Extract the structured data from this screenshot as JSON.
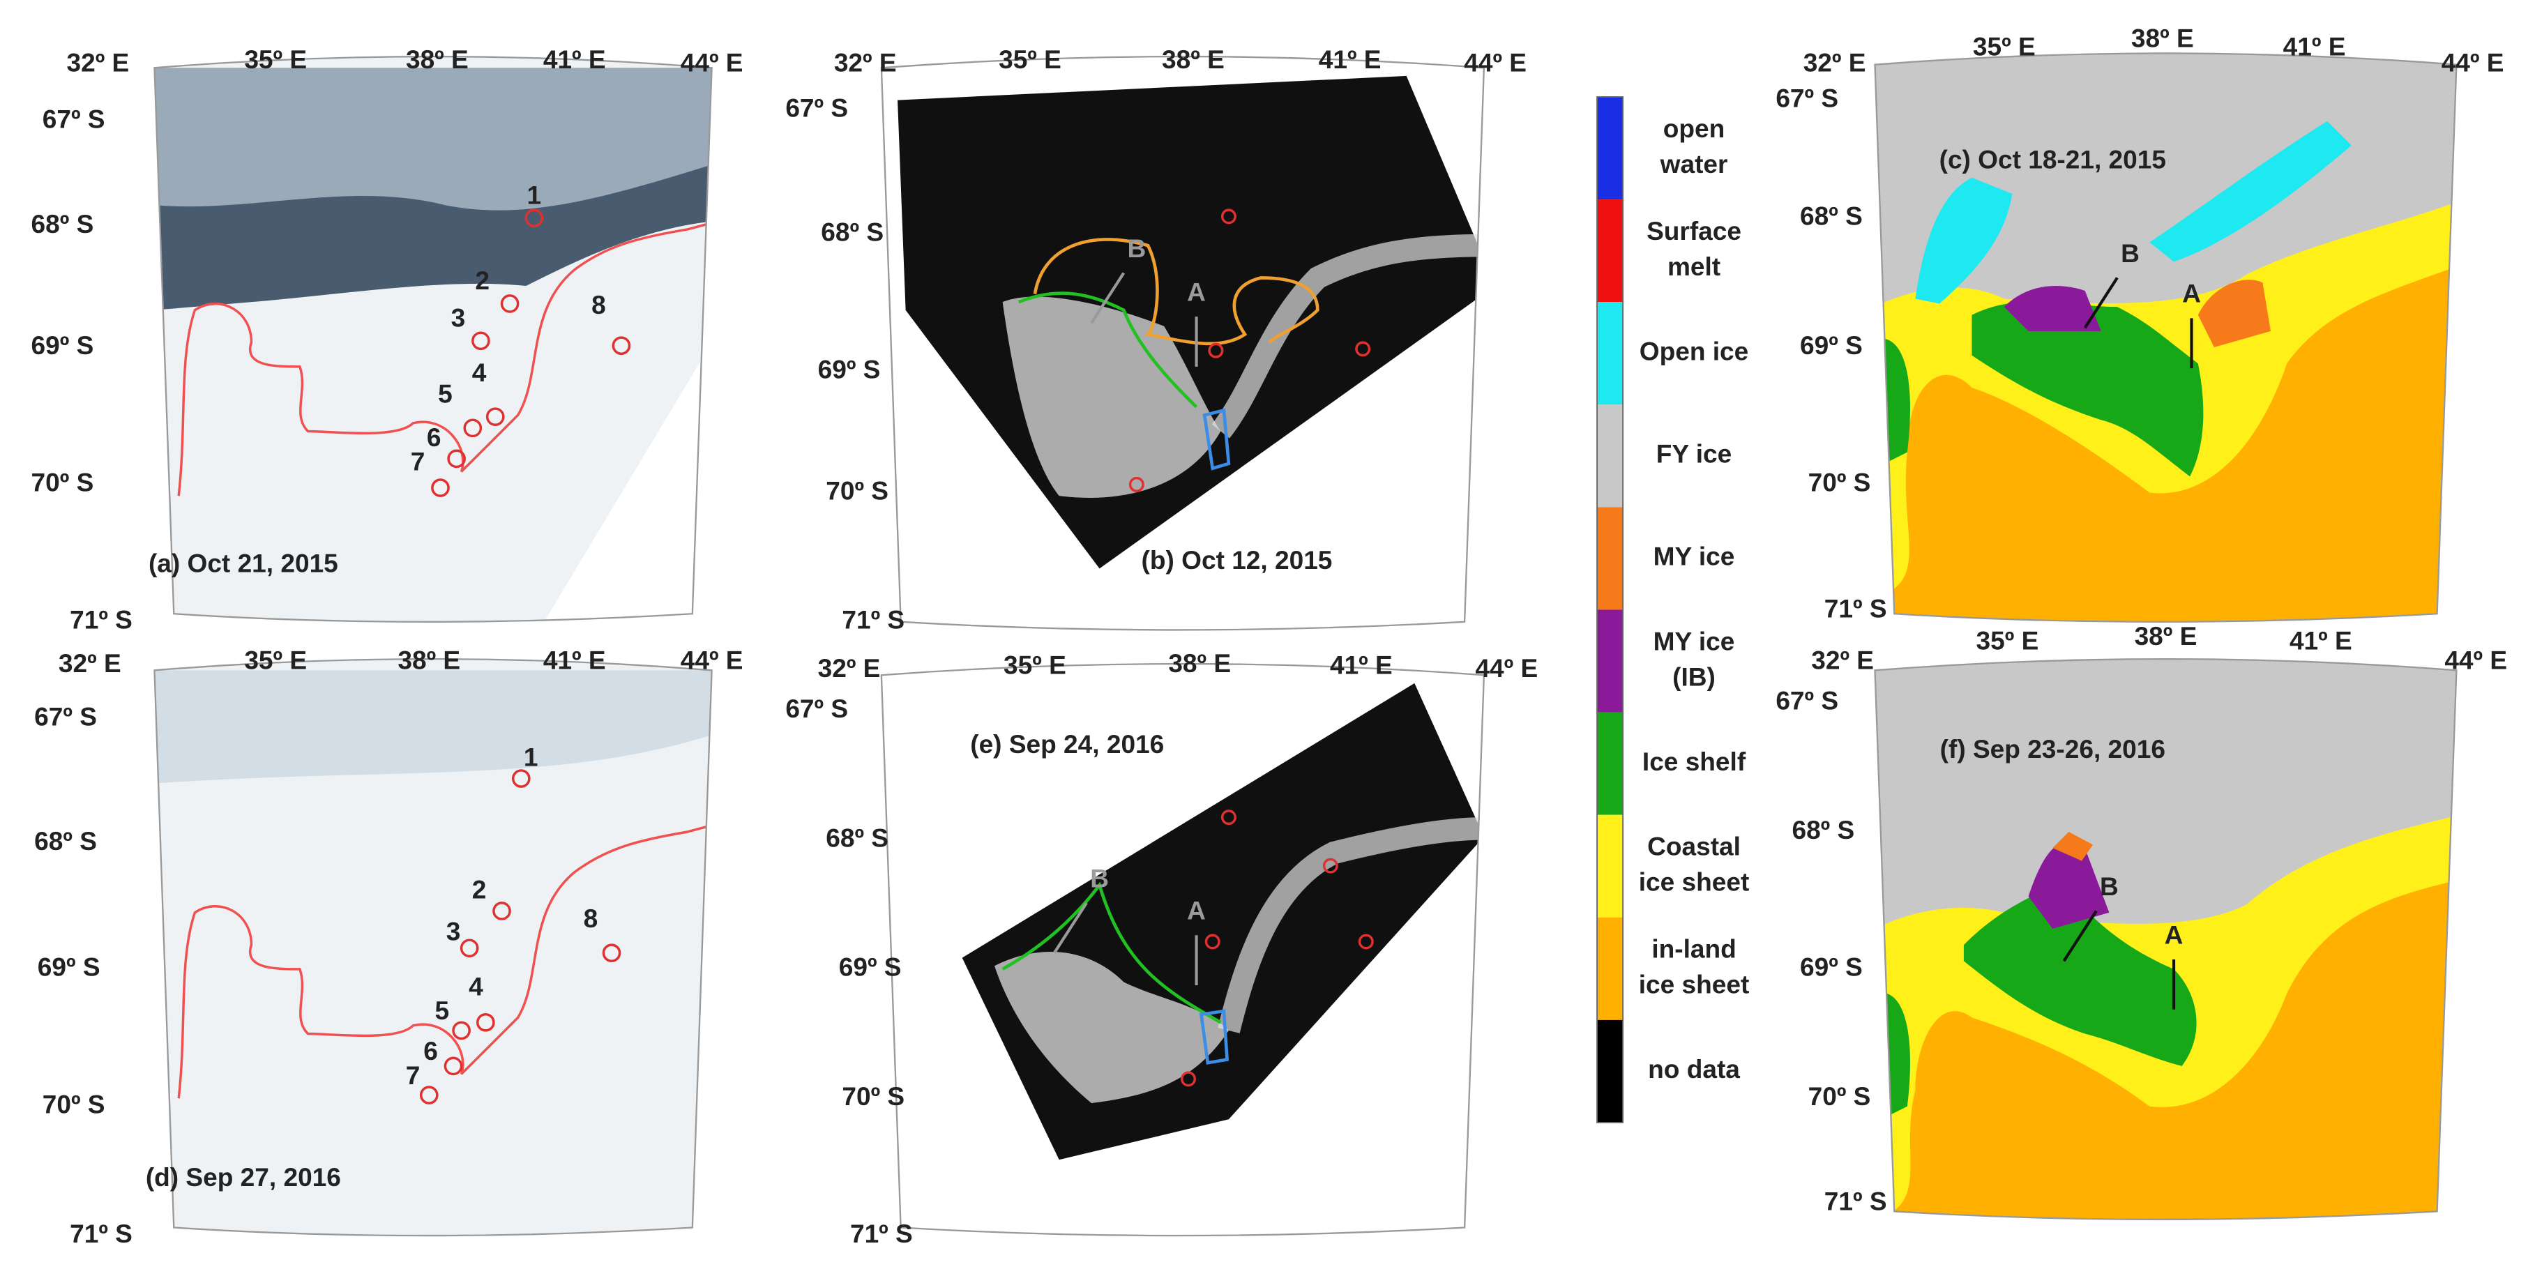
{
  "panels": [
    {
      "caption": "(a) Oct 21, 2015",
      "lon_ticks": [
        "32º E",
        "35º E",
        "38º E",
        "41º E",
        "44º E"
      ],
      "lat_ticks": [
        "67º S",
        "68º S",
        "69º S",
        "70º S",
        "71º S"
      ],
      "site_labels": [
        "1",
        "2",
        "3",
        "4",
        "5",
        "6",
        "7",
        "8"
      ]
    },
    {
      "caption": "(b) Oct 12, 2015",
      "lon_ticks": [
        "32º E",
        "35º E",
        "38º E",
        "41º E",
        "44º E"
      ],
      "lat_ticks": [
        "67º S",
        "68º S",
        "69º S",
        "70º S",
        "71º S"
      ],
      "letters": [
        "B",
        "A"
      ]
    },
    {
      "caption": "(c) Oct 18-21, 2015",
      "lon_ticks": [
        "32º E",
        "35º E",
        "38º E",
        "41º E",
        "44º E"
      ],
      "lat_ticks": [
        "67º S",
        "68º S",
        "69º S",
        "70º S",
        "71º S"
      ],
      "letters": [
        "B",
        "A"
      ]
    },
    {
      "caption": "(d) Sep 27, 2016",
      "lon_ticks": [
        "32º E",
        "35º E",
        "38º E",
        "41º E",
        "44º E"
      ],
      "lat_ticks": [
        "67º S",
        "68º S",
        "69º S",
        "70º S",
        "71º S"
      ],
      "site_labels": [
        "1",
        "2",
        "3",
        "4",
        "5",
        "6",
        "7",
        "8"
      ]
    },
    {
      "caption": "(e) Sep 24, 2016",
      "lon_ticks": [
        "32º E",
        "35º E",
        "38º E",
        "41º E",
        "44º E"
      ],
      "lat_ticks": [
        "67º S",
        "68º S",
        "69º S",
        "70º S",
        "71º S"
      ],
      "letters": [
        "B",
        "A"
      ]
    },
    {
      "caption": "(f) Sep 23-26, 2016",
      "lon_ticks": [
        "32º E",
        "35º E",
        "38º E",
        "41º E",
        "44º E"
      ],
      "lat_ticks": [
        "67º S",
        "68º S",
        "69º S",
        "70º S",
        "71º S"
      ],
      "letters": [
        "B",
        "A"
      ]
    }
  ],
  "legend": [
    {
      "lines": [
        "open",
        "water"
      ],
      "color": "#1a2ee6"
    },
    {
      "lines": [
        "Surface",
        "melt"
      ],
      "color": "#f01010"
    },
    {
      "lines": [
        "Open ice"
      ],
      "color": "#1ee8f0"
    },
    {
      "lines": [
        "FY ice"
      ],
      "color": "#c8c8c8"
    },
    {
      "lines": [
        "MY ice"
      ],
      "color": "#f77a1a"
    },
    {
      "lines": [
        "MY ice",
        "(IB)"
      ],
      "color": "#8a1a9a"
    },
    {
      "lines": [
        "Ice shelf"
      ],
      "color": "#16a816"
    },
    {
      "lines": [
        "Coastal",
        "ice sheet"
      ],
      "color": "#fff01a"
    },
    {
      "lines": [
        "in-land",
        "ice sheet"
      ],
      "color": "#ffb000"
    },
    {
      "lines": [
        "no data"
      ],
      "color": "#000000"
    }
  ]
}
